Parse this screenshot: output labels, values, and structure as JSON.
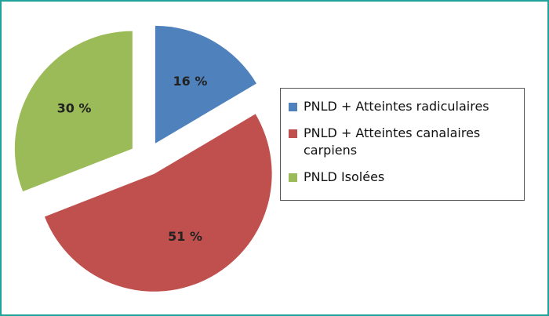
{
  "chart_data": {
    "type": "pie",
    "categories": [
      "PNLD + Atteintes radiculaires",
      "PNLD + Atteintes canalaires carpiens",
      "PNLD Isolées"
    ],
    "values": [
      16,
      51,
      30
    ],
    "value_labels": [
      "16 %",
      "51 %",
      "30 %"
    ],
    "colors": [
      "#4f81bd",
      "#c0504d",
      "#9bbb59"
    ],
    "exploded": true,
    "legend": "right"
  }
}
